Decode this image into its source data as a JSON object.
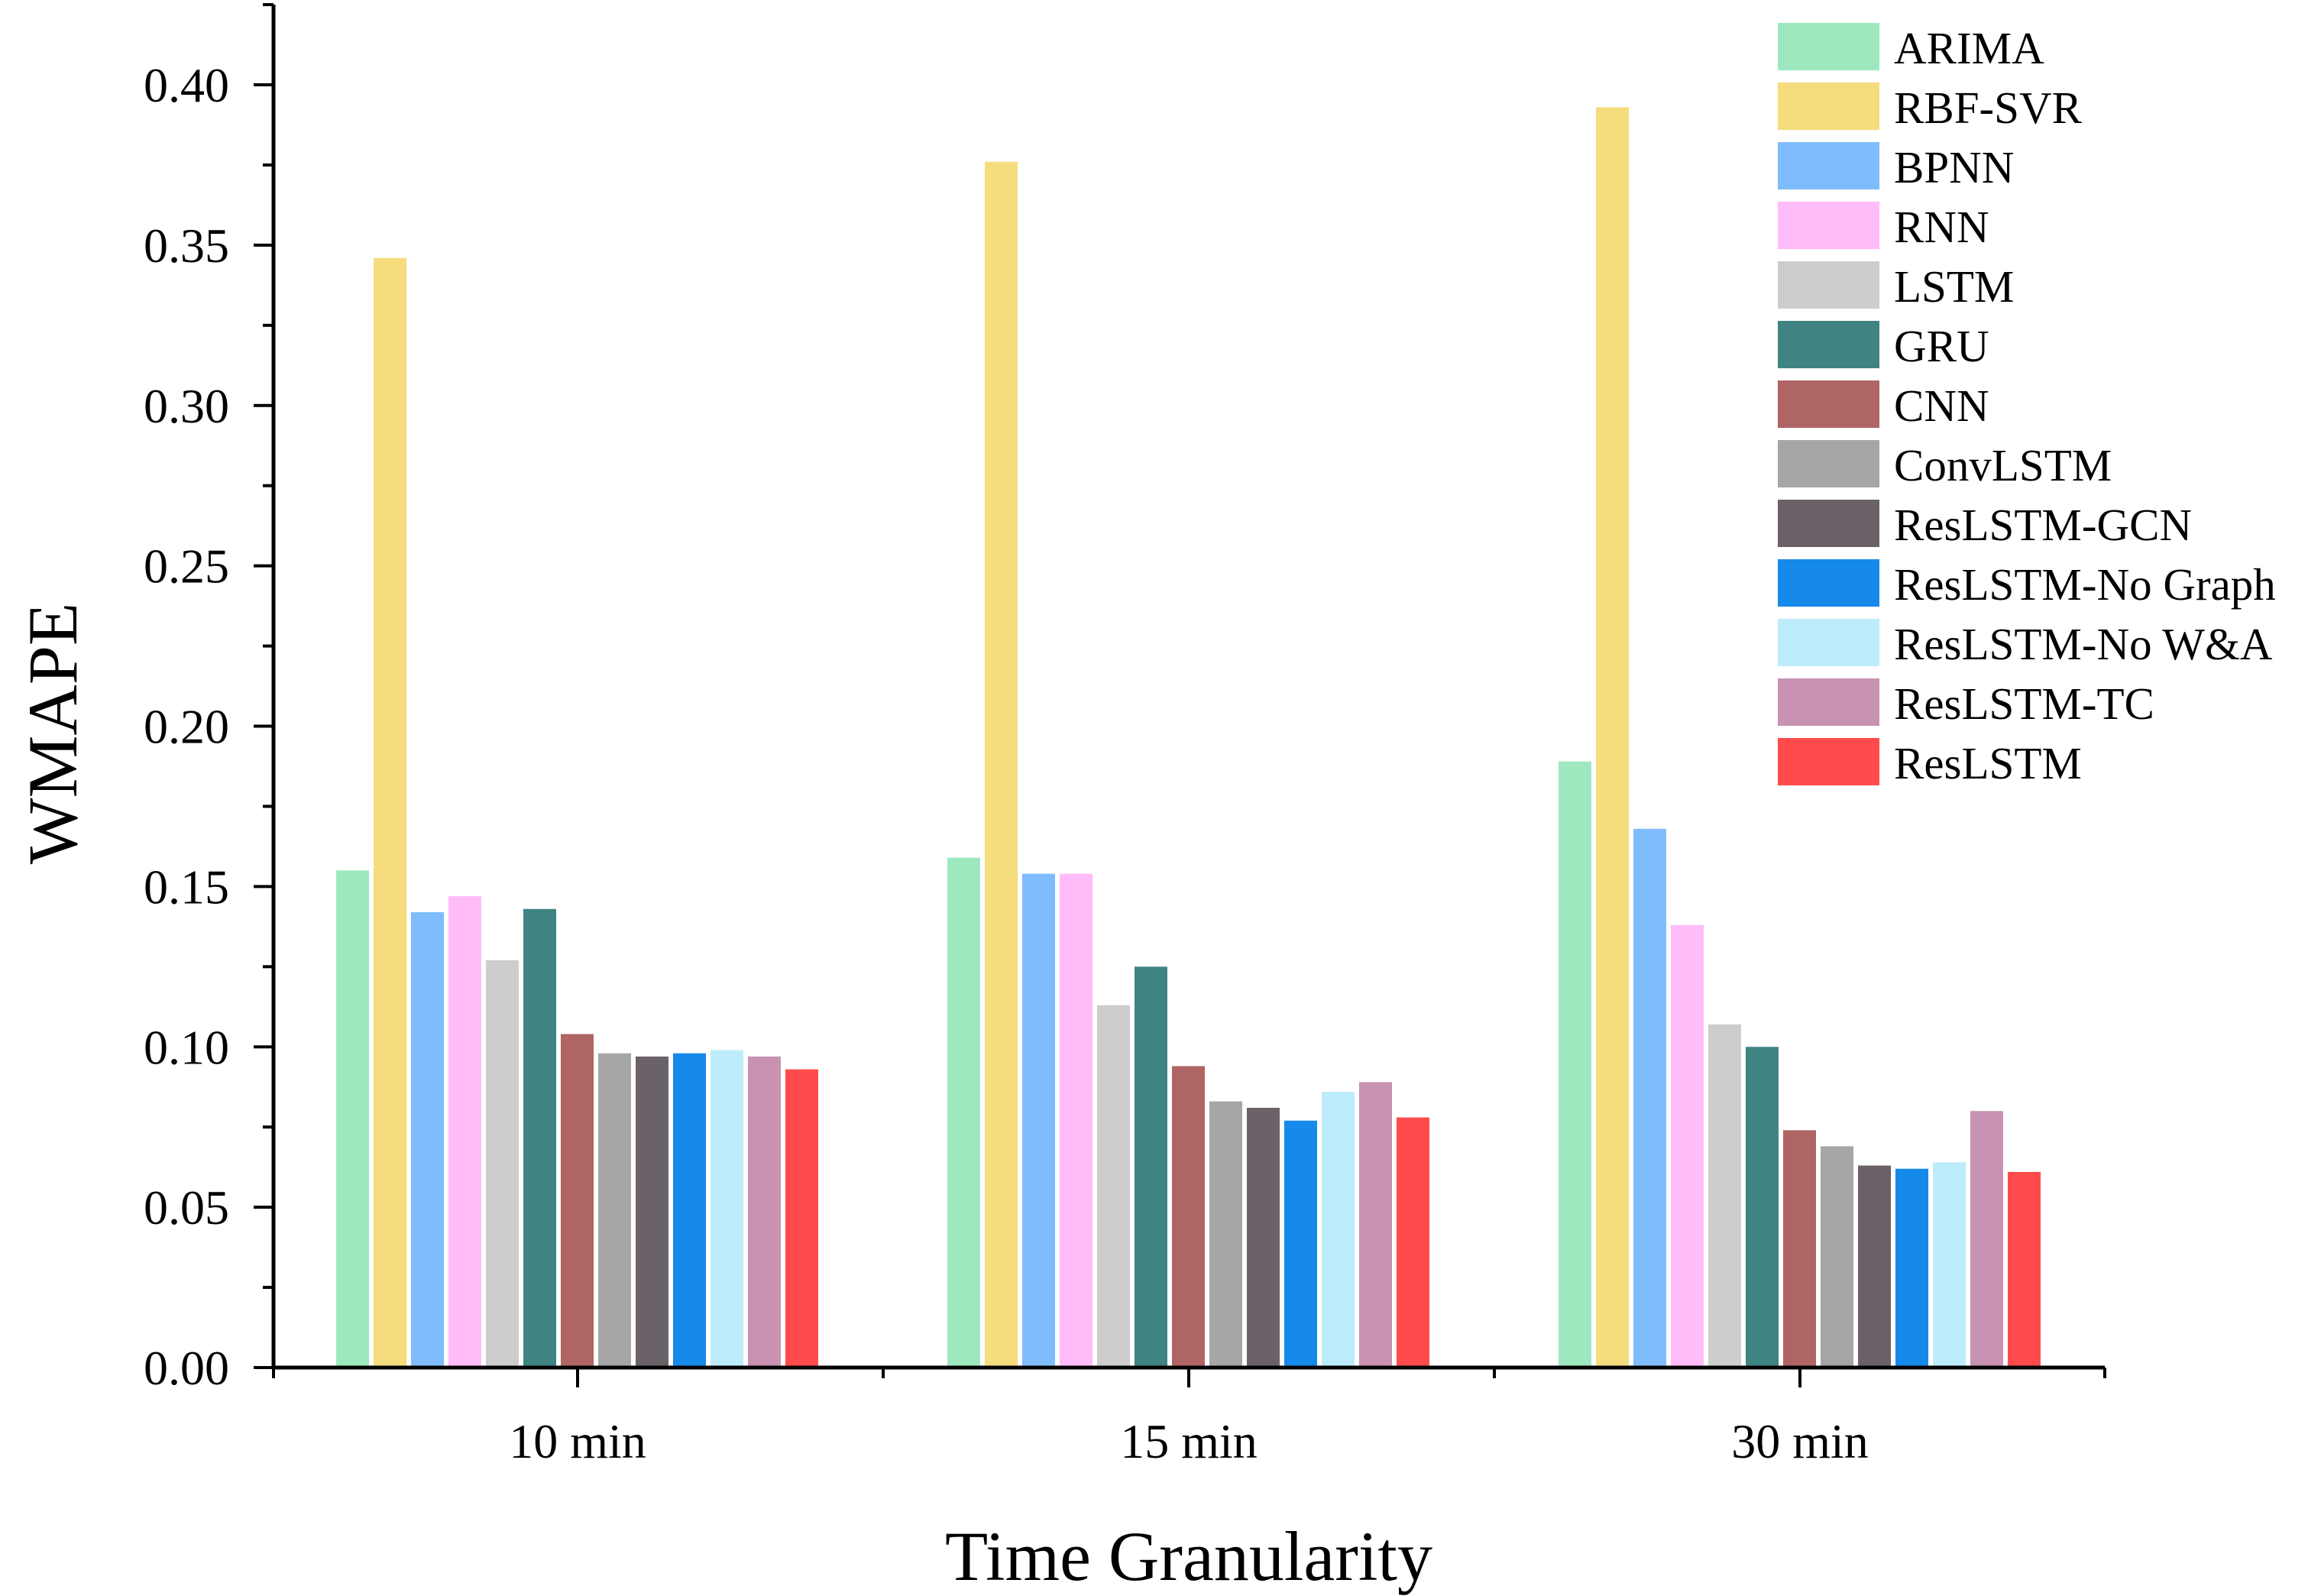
{
  "chart_data": {
    "type": "bar",
    "title": "",
    "xlabel": "Time Granularity",
    "ylabel": "WMAPE",
    "categories": [
      "10 min",
      "15 min",
      "30 min"
    ],
    "ylim": [
      0.0,
      0.42
    ],
    "yticks": [
      "0.00",
      "0.05",
      "0.10",
      "0.15",
      "0.20",
      "0.25",
      "0.30",
      "0.35",
      "0.40"
    ],
    "grid": false,
    "legend_position": "top-right",
    "series": [
      {
        "name": "ARIMA",
        "color": "#9de8bf",
        "values": [
          0.155,
          0.159,
          0.189
        ]
      },
      {
        "name": "RBF-SVR",
        "color": "#f5dc7c",
        "values": [
          0.346,
          0.376,
          0.393
        ]
      },
      {
        "name": "BPNN",
        "color": "#7fbcfb",
        "values": [
          0.142,
          0.154,
          0.168
        ]
      },
      {
        "name": "RNN",
        "color": "#ffbcf9",
        "values": [
          0.147,
          0.154,
          0.138
        ]
      },
      {
        "name": "LSTM",
        "color": "#cdcdcd",
        "values": [
          0.127,
          0.113,
          0.107
        ]
      },
      {
        "name": "GRU",
        "color": "#3f8382",
        "values": [
          0.143,
          0.125,
          0.1
        ]
      },
      {
        "name": "CNN",
        "color": "#ae6563",
        "values": [
          0.104,
          0.094,
          0.074
        ]
      },
      {
        "name": "ConvLSTM",
        "color": "#a6a6a6",
        "values": [
          0.098,
          0.083,
          0.069
        ]
      },
      {
        "name": "ResLSTM-GCN",
        "color": "#6b6269",
        "values": [
          0.097,
          0.081,
          0.063
        ]
      },
      {
        "name": "ResLSTM-No Graph",
        "color": "#168aea",
        "values": [
          0.098,
          0.077,
          0.062
        ]
      },
      {
        "name": "ResLSTM-No W&A",
        "color": "#bdecfa",
        "values": [
          0.099,
          0.086,
          0.064
        ]
      },
      {
        "name": "ResLSTM-TC",
        "color": "#c893b2",
        "values": [
          0.097,
          0.089,
          0.08
        ]
      },
      {
        "name": "ResLSTM",
        "color": "#ff4b4b",
        "values": [
          0.093,
          0.078,
          0.061
        ]
      }
    ]
  }
}
